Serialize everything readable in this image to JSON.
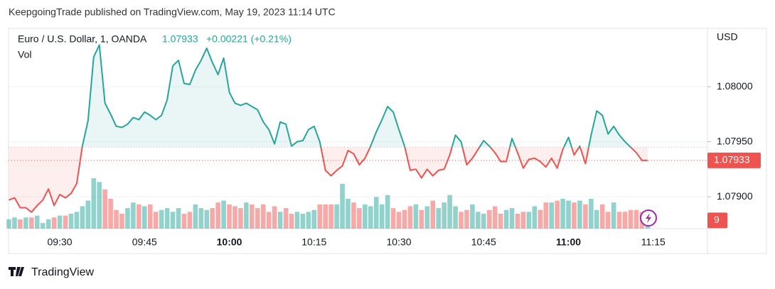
{
  "header": "KeepgoingTrade published on TradingView.com, May 19, 2023 11:14 UTC",
  "footer": "TradingView",
  "chart_data": {
    "type": "baseline",
    "currency": "USD",
    "change_label": "+0.00221 (+0.21%)",
    "baseline": 1.07945,
    "up_color": "#26a69a",
    "down_color": "#ef5350",
    "categories": [
      null,
      null,
      null,
      null,
      null,
      null,
      null,
      null,
      null,
      "09:30",
      null,
      null,
      null,
      null,
      null,
      null,
      null,
      null,
      null,
      null,
      null,
      null,
      null,
      null,
      "09:45",
      null,
      null,
      null,
      null,
      null,
      null,
      null,
      null,
      null,
      null,
      null,
      null,
      null,
      null,
      "10:00",
      null,
      null,
      null,
      null,
      null,
      null,
      null,
      null,
      null,
      null,
      null,
      null,
      null,
      null,
      "10:15",
      null,
      null,
      null,
      null,
      null,
      null,
      null,
      null,
      null,
      null,
      null,
      null,
      null,
      null,
      "10:30",
      null,
      null,
      null,
      null,
      null,
      null,
      null,
      null,
      null,
      null,
      null,
      null,
      null,
      null,
      "10:45",
      null,
      null,
      null,
      null,
      null,
      null,
      null,
      null,
      null,
      null,
      null,
      null,
      null,
      null,
      "11:00",
      null,
      null,
      null,
      null,
      null,
      null,
      null,
      null,
      null,
      null,
      null,
      null,
      null,
      null,
      "11:15"
    ],
    "series": [
      {
        "name": "Euro / U.S. Dollar, 1, OANDA",
        "values": [
          1.07897,
          1.07899,
          1.0789,
          1.0789,
          1.07886,
          1.07892,
          1.07897,
          1.07907,
          1.07892,
          1.07902,
          1.07899,
          1.07903,
          1.07912,
          1.07946,
          1.07969,
          1.08027,
          1.08038,
          1.07985,
          1.07975,
          1.07964,
          1.07963,
          1.07966,
          1.07972,
          1.0797,
          1.07977,
          1.07974,
          1.0797,
          1.07974,
          1.07988,
          1.08019,
          1.08024,
          1.08003,
          1.08002,
          1.08015,
          1.08024,
          1.08035,
          1.08022,
          1.08011,
          1.08026,
          1.07995,
          1.07985,
          1.07983,
          1.07985,
          1.07982,
          1.07979,
          1.07968,
          1.07961,
          1.07948,
          1.07968,
          1.07966,
          1.07946,
          1.0795,
          1.07951,
          1.07961,
          1.07964,
          1.0795,
          1.07924,
          1.07919,
          1.07924,
          1.07928,
          1.07942,
          1.07939,
          1.07929,
          1.07935,
          1.07946,
          1.07959,
          1.0797,
          1.07982,
          1.07977,
          1.07961,
          1.07946,
          1.07924,
          1.07925,
          1.07917,
          1.07925,
          1.07919,
          1.07924,
          1.07925,
          1.07938,
          1.07956,
          1.0795,
          1.07929,
          1.07935,
          1.07943,
          1.07951,
          1.07946,
          1.0794,
          1.07932,
          1.07932,
          1.07953,
          1.0794,
          1.07926,
          1.07934,
          1.07935,
          1.07932,
          1.07927,
          1.07935,
          1.07926,
          1.07943,
          1.07954,
          1.07938,
          1.07946,
          1.0793,
          1.07956,
          1.07978,
          1.07974,
          1.07957,
          1.07964,
          1.07956,
          1.0795,
          1.07945,
          1.0794,
          1.07933,
          1.07933,
          null
        ]
      },
      {
        "name": "Vol",
        "values": [
          5,
          6,
          5,
          6,
          6,
          7,
          3,
          5,
          6,
          7,
          7,
          8,
          9,
          12,
          15,
          27,
          25,
          21,
          16,
          10,
          8,
          11,
          14,
          13,
          12,
          13,
          9,
          10,
          11,
          9,
          11,
          8,
          9,
          13,
          11,
          10,
          11,
          14,
          15,
          13,
          12,
          11,
          14,
          13,
          11,
          13,
          9,
          12,
          9,
          11,
          8,
          9,
          8,
          9,
          10,
          13,
          13,
          13,
          13,
          24,
          16,
          14,
          11,
          13,
          12,
          17,
          13,
          18,
          11,
          9,
          10,
          12,
          13,
          10,
          12,
          15,
          11,
          14,
          18,
          12,
          9,
          10,
          13,
          9,
          8,
          10,
          12,
          8,
          10,
          11,
          8,
          9,
          9,
          12,
          10,
          14,
          14,
          15,
          16,
          15,
          14,
          15,
          13,
          16,
          10,
          13,
          9,
          14,
          9,
          9,
          10,
          10,
          9,
          9,
          null
        ]
      }
    ],
    "ylim": [
      1.07871,
      1.08053
    ],
    "yticks": [
      {
        "value": 1.079,
        "label": "1.07900"
      },
      {
        "value": 1.0795,
        "label": "1.07950"
      },
      {
        "value": 1.08,
        "label": "1.08000"
      }
    ],
    "grid": true
  }
}
